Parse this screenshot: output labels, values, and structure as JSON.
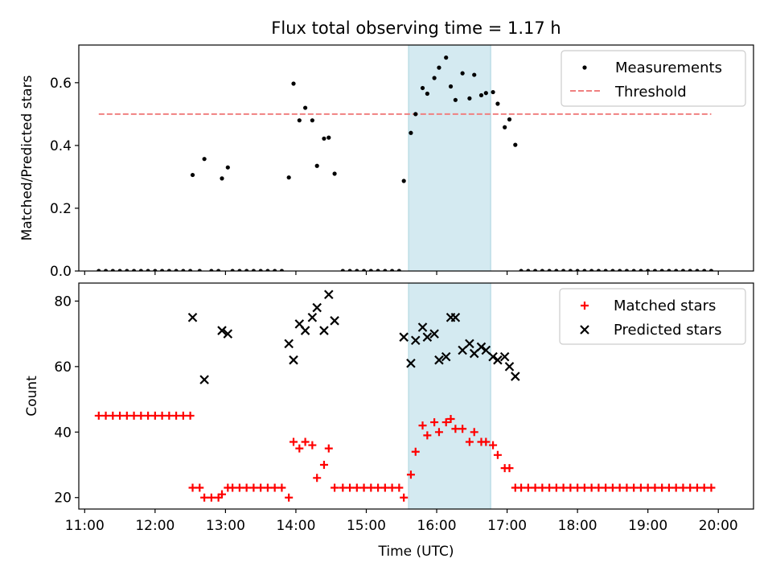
{
  "chart_data": [
    {
      "type": "scatter",
      "title": "Flux total observing time = 1.17 h",
      "xlabel": "",
      "ylabel": "Matched/Predicted stars",
      "ylim": [
        0.0,
        0.72
      ],
      "yticks": [
        0.0,
        0.2,
        0.4,
        0.6
      ],
      "ytick_labels": [
        "0.0",
        "0.2",
        "0.4",
        "0.6"
      ],
      "grid": false,
      "legend_position": "top-right",
      "shaded_interval": {
        "start": "15:36",
        "end": "16:46",
        "color": "#d4eaf1"
      },
      "threshold": {
        "name": "Threshold",
        "value": 0.5,
        "x_start": "11:12",
        "x_end": "19:54",
        "color": "#f08080"
      },
      "series": [
        {
          "name": "Measurements",
          "color": "#000000",
          "marker": "dot",
          "points": [
            [
              "11:12",
              0.0
            ],
            [
              "11:18",
              0.0
            ],
            [
              "11:24",
              0.0
            ],
            [
              "11:30",
              0.0
            ],
            [
              "11:36",
              0.0
            ],
            [
              "11:42",
              0.0
            ],
            [
              "11:48",
              0.0
            ],
            [
              "11:54",
              0.0
            ],
            [
              "12:00",
              0.0
            ],
            [
              "12:06",
              0.0
            ],
            [
              "12:12",
              0.0
            ],
            [
              "12:18",
              0.0
            ],
            [
              "12:24",
              0.0
            ],
            [
              "12:30",
              0.0
            ],
            [
              "12:32",
              0.306
            ],
            [
              "12:38",
              0.0
            ],
            [
              "12:42",
              0.357
            ],
            [
              "12:48",
              0.0
            ],
            [
              "12:54",
              0.0
            ],
            [
              "12:57",
              0.295
            ],
            [
              "13:02",
              0.33
            ],
            [
              "13:06",
              0.0
            ],
            [
              "13:12",
              0.0
            ],
            [
              "13:18",
              0.0
            ],
            [
              "13:24",
              0.0
            ],
            [
              "13:30",
              0.0
            ],
            [
              "13:36",
              0.0
            ],
            [
              "13:42",
              0.0
            ],
            [
              "13:48",
              0.0
            ],
            [
              "13:54",
              0.298
            ],
            [
              "13:58",
              0.597
            ],
            [
              "14:03",
              0.48
            ],
            [
              "14:08",
              0.52
            ],
            [
              "14:14",
              0.48
            ],
            [
              "14:18",
              0.335
            ],
            [
              "14:24",
              0.422
            ],
            [
              "14:28",
              0.425
            ],
            [
              "14:33",
              0.31
            ],
            [
              "14:40",
              0.0
            ],
            [
              "14:46",
              0.0
            ],
            [
              "14:52",
              0.0
            ],
            [
              "14:58",
              0.0
            ],
            [
              "15:04",
              0.0
            ],
            [
              "15:10",
              0.0
            ],
            [
              "15:16",
              0.0
            ],
            [
              "15:22",
              0.0
            ],
            [
              "15:28",
              0.0
            ],
            [
              "15:32",
              0.287
            ],
            [
              "15:38",
              0.44
            ],
            [
              "15:42",
              0.5
            ],
            [
              "15:48",
              0.583
            ],
            [
              "15:52",
              0.565
            ],
            [
              "15:58",
              0.615
            ],
            [
              "16:02",
              0.648
            ],
            [
              "16:08",
              0.68
            ],
            [
              "16:12",
              0.588
            ],
            [
              "16:16",
              0.545
            ],
            [
              "16:22",
              0.63
            ],
            [
              "16:28",
              0.55
            ],
            [
              "16:32",
              0.625
            ],
            [
              "16:38",
              0.56
            ],
            [
              "16:42",
              0.567
            ],
            [
              "16:48",
              0.57
            ],
            [
              "16:52",
              0.533
            ],
            [
              "16:58",
              0.458
            ],
            [
              "17:02",
              0.483
            ],
            [
              "17:07",
              0.402
            ],
            [
              "17:12",
              0.0
            ],
            [
              "17:18",
              0.0
            ],
            [
              "17:24",
              0.0
            ],
            [
              "17:30",
              0.0
            ],
            [
              "17:36",
              0.0
            ],
            [
              "17:42",
              0.0
            ],
            [
              "17:48",
              0.0
            ],
            [
              "17:54",
              0.0
            ],
            [
              "18:00",
              0.0
            ],
            [
              "18:06",
              0.0
            ],
            [
              "18:12",
              0.0
            ],
            [
              "18:18",
              0.0
            ],
            [
              "18:24",
              0.0
            ],
            [
              "18:30",
              0.0
            ],
            [
              "18:36",
              0.0
            ],
            [
              "18:42",
              0.0
            ],
            [
              "18:48",
              0.0
            ],
            [
              "18:54",
              0.0
            ],
            [
              "19:00",
              0.0
            ],
            [
              "19:06",
              0.0
            ],
            [
              "19:12",
              0.0
            ],
            [
              "19:18",
              0.0
            ],
            [
              "19:24",
              0.0
            ],
            [
              "19:30",
              0.0
            ],
            [
              "19:36",
              0.0
            ],
            [
              "19:42",
              0.0
            ],
            [
              "19:48",
              0.0
            ],
            [
              "19:54",
              0.0
            ]
          ]
        }
      ]
    },
    {
      "type": "scatter",
      "title": "",
      "xlabel": "Time (UTC)",
      "ylabel": "Count",
      "ylim": [
        16.5,
        85.5
      ],
      "yticks": [
        20,
        40,
        60,
        80
      ],
      "ytick_labels": [
        "20",
        "40",
        "60",
        "80"
      ],
      "xlim": [
        "10:55",
        "20:30"
      ],
      "xticks": [
        "11:00",
        "12:00",
        "13:00",
        "14:00",
        "15:00",
        "16:00",
        "17:00",
        "18:00",
        "19:00",
        "20:00"
      ],
      "xtick_labels": [
        "11:00",
        "12:00",
        "13:00",
        "14:00",
        "15:00",
        "16:00",
        "17:00",
        "18:00",
        "19:00",
        "20:00"
      ],
      "grid": false,
      "legend_position": "top-right",
      "shaded_interval": {
        "start": "15:36",
        "end": "16:46",
        "color": "#d4eaf1"
      },
      "series": [
        {
          "name": "Matched stars",
          "color": "#ff0000",
          "marker": "plus",
          "points": [
            [
              "11:12",
              45
            ],
            [
              "11:18",
              45
            ],
            [
              "11:24",
              45
            ],
            [
              "11:30",
              45
            ],
            [
              "11:36",
              45
            ],
            [
              "11:42",
              45
            ],
            [
              "11:48",
              45
            ],
            [
              "11:54",
              45
            ],
            [
              "12:00",
              45
            ],
            [
              "12:06",
              45
            ],
            [
              "12:12",
              45
            ],
            [
              "12:18",
              45
            ],
            [
              "12:24",
              45
            ],
            [
              "12:30",
              45
            ],
            [
              "12:32",
              23
            ],
            [
              "12:38",
              23
            ],
            [
              "12:42",
              20
            ],
            [
              "12:48",
              20
            ],
            [
              "12:54",
              20
            ],
            [
              "12:57",
              21
            ],
            [
              "13:02",
              23
            ],
            [
              "13:06",
              23
            ],
            [
              "13:12",
              23
            ],
            [
              "13:18",
              23
            ],
            [
              "13:24",
              23
            ],
            [
              "13:30",
              23
            ],
            [
              "13:36",
              23
            ],
            [
              "13:42",
              23
            ],
            [
              "13:48",
              23
            ],
            [
              "13:54",
              20
            ],
            [
              "13:58",
              37
            ],
            [
              "14:03",
              35
            ],
            [
              "14:08",
              37
            ],
            [
              "14:14",
              36
            ],
            [
              "14:18",
              26
            ],
            [
              "14:24",
              30
            ],
            [
              "14:28",
              35
            ],
            [
              "14:33",
              23
            ],
            [
              "14:40",
              23
            ],
            [
              "14:46",
              23
            ],
            [
              "14:52",
              23
            ],
            [
              "14:58",
              23
            ],
            [
              "15:04",
              23
            ],
            [
              "15:10",
              23
            ],
            [
              "15:16",
              23
            ],
            [
              "15:22",
              23
            ],
            [
              "15:28",
              23
            ],
            [
              "15:32",
              20
            ],
            [
              "15:38",
              27
            ],
            [
              "15:42",
              34
            ],
            [
              "15:48",
              42
            ],
            [
              "15:52",
              39
            ],
            [
              "15:58",
              43
            ],
            [
              "16:02",
              40
            ],
            [
              "16:08",
              43
            ],
            [
              "16:12",
              44
            ],
            [
              "16:16",
              41
            ],
            [
              "16:22",
              41
            ],
            [
              "16:28",
              37
            ],
            [
              "16:32",
              40
            ],
            [
              "16:38",
              37
            ],
            [
              "16:42",
              37
            ],
            [
              "16:48",
              36
            ],
            [
              "16:52",
              33
            ],
            [
              "16:58",
              29
            ],
            [
              "17:02",
              29
            ],
            [
              "17:07",
              23
            ],
            [
              "17:12",
              23
            ],
            [
              "17:18",
              23
            ],
            [
              "17:24",
              23
            ],
            [
              "17:30",
              23
            ],
            [
              "17:36",
              23
            ],
            [
              "17:42",
              23
            ],
            [
              "17:48",
              23
            ],
            [
              "17:54",
              23
            ],
            [
              "18:00",
              23
            ],
            [
              "18:06",
              23
            ],
            [
              "18:12",
              23
            ],
            [
              "18:18",
              23
            ],
            [
              "18:24",
              23
            ],
            [
              "18:30",
              23
            ],
            [
              "18:36",
              23
            ],
            [
              "18:42",
              23
            ],
            [
              "18:48",
              23
            ],
            [
              "18:54",
              23
            ],
            [
              "19:00",
              23
            ],
            [
              "19:06",
              23
            ],
            [
              "19:12",
              23
            ],
            [
              "19:18",
              23
            ],
            [
              "19:24",
              23
            ],
            [
              "19:30",
              23
            ],
            [
              "19:36",
              23
            ],
            [
              "19:42",
              23
            ],
            [
              "19:48",
              23
            ],
            [
              "19:54",
              23
            ]
          ]
        },
        {
          "name": "Predicted stars",
          "color": "#000000",
          "marker": "x",
          "points": [
            [
              "12:32",
              75
            ],
            [
              "12:42",
              56
            ],
            [
              "12:57",
              71
            ],
            [
              "13:02",
              70
            ],
            [
              "13:54",
              67
            ],
            [
              "13:58",
              62
            ],
            [
              "14:03",
              73
            ],
            [
              "14:08",
              71
            ],
            [
              "14:14",
              75
            ],
            [
              "14:18",
              78
            ],
            [
              "14:24",
              71
            ],
            [
              "14:28",
              82
            ],
            [
              "14:33",
              74
            ],
            [
              "15:32",
              69
            ],
            [
              "15:38",
              61
            ],
            [
              "15:42",
              68
            ],
            [
              "15:48",
              72
            ],
            [
              "15:52",
              69
            ],
            [
              "15:58",
              70
            ],
            [
              "16:02",
              62
            ],
            [
              "16:08",
              63
            ],
            [
              "16:12",
              75
            ],
            [
              "16:16",
              75
            ],
            [
              "16:22",
              65
            ],
            [
              "16:28",
              67
            ],
            [
              "16:32",
              64
            ],
            [
              "16:38",
              66
            ],
            [
              "16:42",
              65
            ],
            [
              "16:48",
              63
            ],
            [
              "16:52",
              62
            ],
            [
              "16:58",
              63
            ],
            [
              "17:02",
              60
            ],
            [
              "17:07",
              57
            ]
          ]
        }
      ]
    }
  ]
}
